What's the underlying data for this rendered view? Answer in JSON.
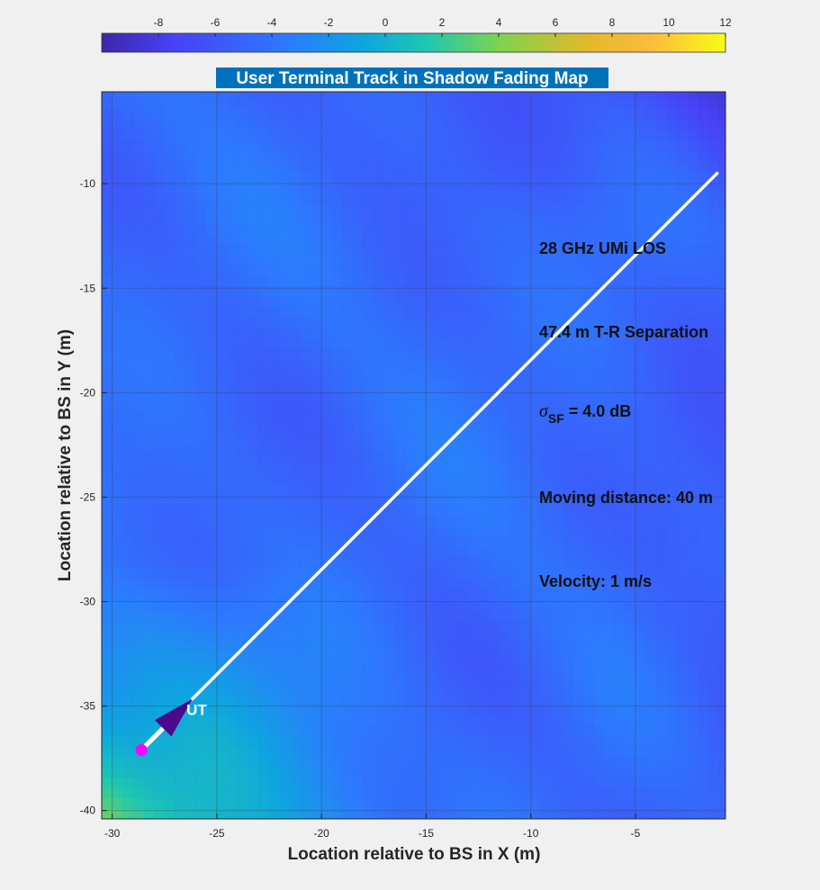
{
  "chart_data": {
    "type": "heatmap",
    "title": "User Terminal Track in Shadow Fading Map",
    "xlabel": "Location relative to BS in X (m)",
    "ylabel": "Location relative to BS in Y (m)",
    "xlim": [
      -30.5,
      -0.7
    ],
    "ylim": [
      -40.4,
      -5.6
    ],
    "xticks": [
      -30,
      -25,
      -20,
      -15,
      -10,
      -5
    ],
    "yticks": [
      -40,
      -35,
      -30,
      -25,
      -20,
      -15,
      -10
    ],
    "grid": true,
    "colorbar": {
      "location": "top",
      "range": [
        -10,
        12
      ],
      "ticks": [
        -8,
        -6,
        -4,
        -2,
        0,
        2,
        4,
        6,
        8,
        10,
        12
      ]
    },
    "colormap": [
      "#3e26a8",
      "#4743f8",
      "#2c7bfe",
      "#0ea5e0",
      "#1fc7b0",
      "#7fd34e",
      "#e4b82b",
      "#fbbc3d",
      "#f9fb15"
    ],
    "track": {
      "name": "UT",
      "start": [
        -28.6,
        -37.1
      ],
      "end": [
        -1.1,
        -9.5
      ],
      "color": "#ffffff",
      "start_marker_color": "#ff00ff",
      "arrow_color": "#4b0a8c"
    },
    "annotations": [
      {
        "id": "freq",
        "text": "28 GHz UMi LOS"
      },
      {
        "id": "sep",
        "text": "47.4 m T-R Separation"
      },
      {
        "id": "sigma_sym",
        "text": "σ"
      },
      {
        "id": "sigma_sub",
        "text": "SF"
      },
      {
        "id": "sigma_val",
        "text": " = 4.0 dB"
      },
      {
        "id": "dist",
        "text": "Moving distance: 40 m"
      },
      {
        "id": "vel",
        "text": "Velocity: 1 m/s"
      }
    ]
  }
}
